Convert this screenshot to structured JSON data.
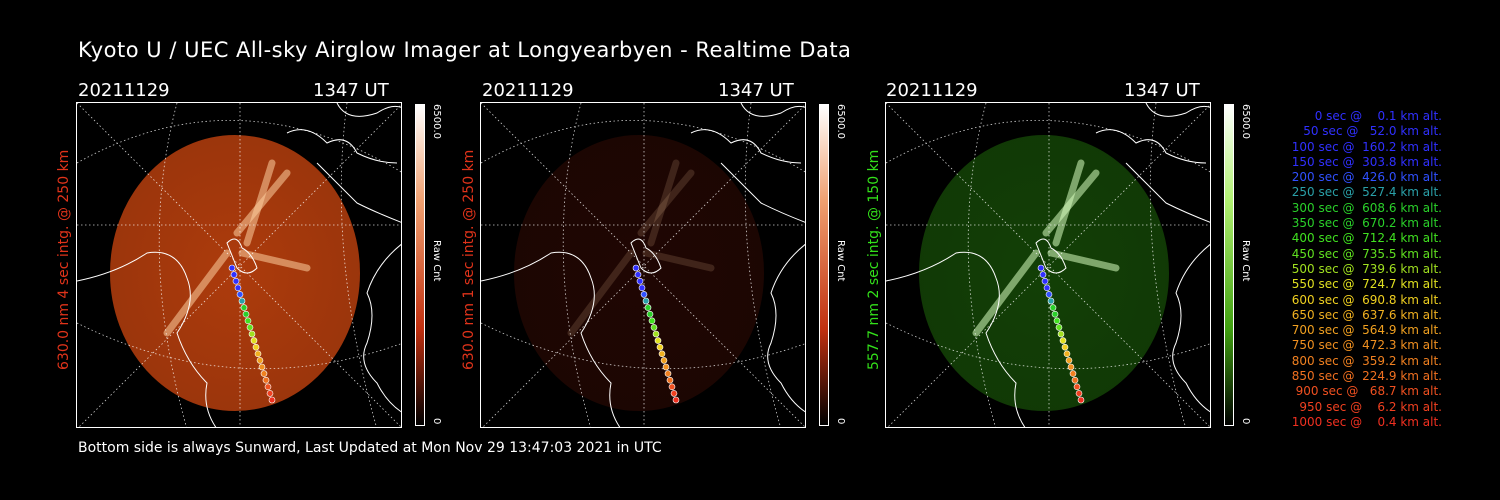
{
  "title": "Kyoto U / UEC All-sky Airglow Imager at Longyearbyen - Realtime Data",
  "footer": "Bottom side is always Sunward, Last Updated at Mon Nov 29 13:47:03 2021 in UTC",
  "panels": [
    {
      "date": "20211129",
      "time": "1347 UT",
      "label": "630.0 nm  4 sec intg. @ 250 km",
      "label_color": "#e0331a",
      "colorbar_max": "6500.0",
      "colorbar_min": "0",
      "colorbar_unit": "Raw Cnt",
      "color": "#d84a10",
      "intensity": 0.8
    },
    {
      "date": "20211129",
      "time": "1347 UT",
      "label": "630.0 nm  1 sec intg. @ 250 km",
      "label_color": "#e0331a",
      "colorbar_max": "6500.0",
      "colorbar_min": "0",
      "colorbar_unit": "Raw Cnt",
      "color": "#5a1208",
      "intensity": 0.35
    },
    {
      "date": "20211129",
      "time": "1347 UT",
      "label": "557.7 nm  2 sec intg. @ 150 km",
      "label_color": "#33e01a",
      "colorbar_max": "6500.0",
      "colorbar_min": "0",
      "colorbar_unit": "Raw Cnt",
      "color": "#1f6a0a",
      "intensity": 0.6
    }
  ],
  "legend": [
    {
      "text": "0 sec @    0.1 km alt.",
      "color": "#3030ff"
    },
    {
      "text": "50 sec @   52.0 km alt.",
      "color": "#3030ff"
    },
    {
      "text": "100 sec @  160.2 km alt.",
      "color": "#3030ff"
    },
    {
      "text": "150 sec @  303.8 km alt.",
      "color": "#3030ff"
    },
    {
      "text": "200 sec @  426.0 km alt.",
      "color": "#3050ff"
    },
    {
      "text": "250 sec @  527.4 km alt.",
      "color": "#2aa0a8"
    },
    {
      "text": "300 sec @  608.6 km alt.",
      "color": "#2ad02a"
    },
    {
      "text": "350 sec @  670.2 km alt.",
      "color": "#2ad02a"
    },
    {
      "text": "400 sec @  712.4 km alt.",
      "color": "#40e020"
    },
    {
      "text": "450 sec @  735.5 km alt.",
      "color": "#60e020"
    },
    {
      "text": "500 sec @  739.6 km alt.",
      "color": "#a0e020"
    },
    {
      "text": "550 sec @  724.7 km alt.",
      "color": "#e0e020"
    },
    {
      "text": "600 sec @  690.8 km alt.",
      "color": "#f0d020"
    },
    {
      "text": "650 sec @  637.6 km alt.",
      "color": "#f0b020"
    },
    {
      "text": "700 sec @  564.9 km alt.",
      "color": "#f0a020"
    },
    {
      "text": "750 sec @  472.3 km alt.",
      "color": "#f09020"
    },
    {
      "text": "800 sec @  359.2 km alt.",
      "color": "#f08020"
    },
    {
      "text": "850 sec @  224.9 km alt.",
      "color": "#f07020"
    },
    {
      "text": "900 sec @   68.7 km alt.",
      "color": "#f05020"
    },
    {
      "text": "950 sec @    6.2 km alt.",
      "color": "#f04020"
    },
    {
      "text": "1000 sec @    0.4 km alt.",
      "color": "#f03020"
    }
  ]
}
